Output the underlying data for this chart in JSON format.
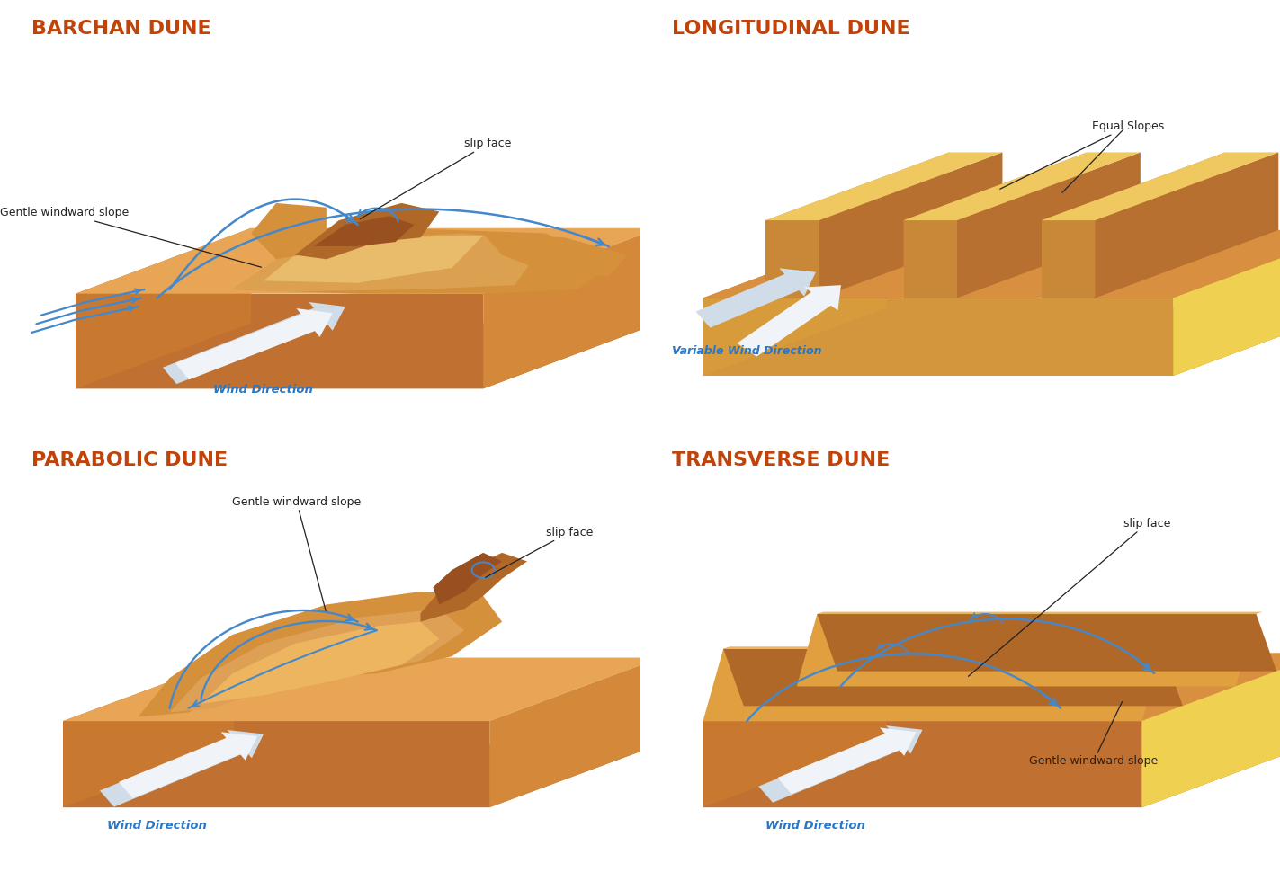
{
  "title_barchan": "BARCHAN DUNE",
  "title_longitudinal": "LONGITUDINAL DUNE",
  "title_parabolic": "PARABOLIC DUNE",
  "title_transverse": "TRANSVERSE DUNE",
  "title_color": "#c0440a",
  "title_fontsize": 16,
  "background_color": "#ffffff",
  "sand_top": "#e8a555",
  "sand_left": "#c97830",
  "sand_right": "#d4883a",
  "sand_front": "#c07030",
  "sand_highlight": "#f2c070",
  "sand_shadow": "#b06028",
  "dune_mid": "#d4903a",
  "dune_light": "#edb560",
  "dune_dark": "#b06828",
  "dune_darkest": "#985020",
  "wind_arrow_color": "#d0dce8",
  "wind_arrow_light": "#f0f4f8",
  "blue_color": "#4488cc",
  "ann_color": "#222222",
  "wind_label_color": "#2877c8",
  "yellow_band": "#f0d050",
  "yellow_light": "#f8e080"
}
